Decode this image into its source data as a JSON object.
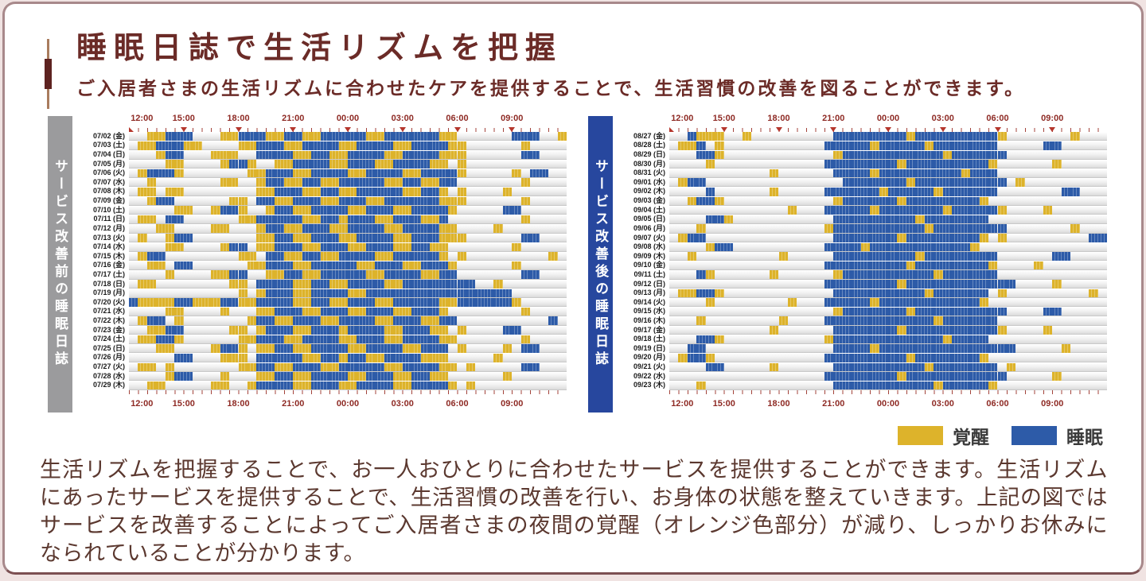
{
  "header": {
    "title": "睡眠日誌で生活リズムを把握",
    "subtitle": "ご入居者さまの生活リズムに合わせたケアを提供することで、生活習慣の改善を図ることができます。"
  },
  "legend": {
    "items": [
      {
        "key": "W",
        "label": "覚醒",
        "color": "#DDB32B"
      },
      {
        "key": "S",
        "label": "睡眠",
        "color": "#2D5BA8"
      }
    ]
  },
  "caption_text": "生活リズムを把握することで、お一人おひとりに合わせたサービスを提供することができます。生活リズムにあったサービスを提供することで、生活習慣の改善を行い、お身体の状態を整えていきます。上記の図ではサービスを改善することによってご入居者さまの夜間の覚醒（オレンジ色部分）が減り、しっかりお休みになられていることが分かります。",
  "colors": {
    "accent_maroon": "#6B2B27",
    "axis_label": "#8E2A24",
    "axis_day_bg": "#F9F2D0",
    "axis_night_band": "#A89BCC",
    "before_label_bar": "#9B9B9D",
    "after_label_bar": "#27479E",
    "wake": "#DDB32B",
    "sleep": "#2D5BA8",
    "tick_mark": "#A3433B",
    "triangle": "#B5362C"
  },
  "chart_data": [
    {
      "type": "heatmap",
      "title": "サービス改善前の睡眠日誌",
      "time_ticks": [
        "12:00",
        "15:00",
        "18:00",
        "21:00",
        "00:00",
        "03:00",
        "06:00",
        "09:00"
      ],
      "time_span_hours": 24,
      "slot_minutes": 30,
      "night_band": {
        "start": "18:00",
        "end": "06:00"
      },
      "value_legend": {
        "W": "覚醒",
        "S": "睡眠",
        ".": "none"
      },
      "categories": [
        "07/02 (金)",
        "07/03 (土)",
        "07/04 (日)",
        "07/05 (月)",
        "07/06 (火)",
        "07/07 (水)",
        "07/08 (木)",
        "07/09 (金)",
        "07/10 (土)",
        "07/11 (日)",
        "07/12 (月)",
        "07/13 (火)",
        "07/14 (水)",
        "07/15 (木)",
        "07/16 (金)",
        "07/17 (土)",
        "07/18 (日)",
        "07/19 (月)",
        "07/20 (火)",
        "07/21 (水)",
        "07/22 (木)",
        "07/23 (金)",
        "07/24 (土)",
        "07/25 (日)",
        "07/26 (月)",
        "07/27 (火)",
        "07/28 (水)",
        "07/29 (木)"
      ],
      "rows": [
        "..WWSSS...WWSSSWWSSWWSSSSSWWSSSSSSWW......SSS..W",
        ".WWSSSWW....WWSSSWWSSSSWWSSSSWWSSSSWW......W....",
        "...WSS...WWW..SSSSWWSSWWSSSSWWSSSSWWW......SS.",
        "....WW....WSSW..WWSSSSWWSSSWWSSSSWW.W...........",
        ".WSSSW.......WWSSSWWSSSSWWSSSSWWSSSSW.....W.SS..",
        "..W.......WW..WSSWWSSWWSSSSSWWSSWWSS.......W....",
        ".WW.WW........WWSSSWWSSWWSSSSSWWSSW.W....W......",
        "..WSS......WW.SSWWSSSWWSSSWWSSSSSSWWW......W....",
        ".....WW..WSSW..WSSWWSSSSWWSSSWWSSSSW.....SS.....",
        ".WW.SS......WWSSSSSWWSSWSSSWWSSSWWS........W....",
        "...WW....WW...WSSWWSSSWWSSSSWWSSSSWW....W.......",
        ".W..WSS.......WWSSWWSSSWWSSSSWWSSSWWW......SS...",
        "....WW....WSS.WWSSSWWSSSWWSSSWWSSWW.......W.....",
        ".WSS........WW.SSWWSSWWSSSSWWSSSSSW.W.........W.",
        "..WW.SS......WWSSSWWSSSSSWWSSSWWSSSW......W.....",
        "....W....WWSS..WWSSWWSSSSSWWSSSSWWSS.......SS...",
        ".WW........WW.SSSSWWSSWWSSSSWWSSSSSSSS..W.......",
        "............W.WSSSWWSSSSWWSSSSSSSSSSSSSSSS.....",
        "SWWWWSSWWWSSWWSSSSWWSSWWSSSWWSSSSSWWSSSSSSW.....",
        "....WW....W...WWSSSWWSSSWWSSSWWSSSW........W....",
        ".WSS.W.......WSSWWSSSWWSSSSWWSSSWWSS..........S.",
        "..WWSS.....WW.WSSSWWSSSWSSSSWWSSSWW.W....SS.....",
        ".WWSSW......WWSSSWWSSSSWWSSSWWSSSSWW.......W....",
        "...WW....WSSW.WWSSWWSSSSWWSSSSWWSSS.W....W.SS...",
        ".....SS...WWW.SSSSSWWSSWSSWWSSSSWWW.....W.......",
        ".WW.W.......WWSSWWSSSWWSSSSSWWSSSSWW.W.....SS...",
        "....WSS...W...WWSSWWSSSSWWSSSWWSSWW......W......",
        "..WW.....WW..WSSSSWWSSSWWSSSSWWSSSSW.W.........."
      ]
    },
    {
      "type": "heatmap",
      "title": "サービス改善後の睡眠日誌",
      "time_ticks": [
        "12:00",
        "15:00",
        "18:00",
        "21:00",
        "00:00",
        "03:00",
        "06:00",
        "09:00"
      ],
      "time_span_hours": 24,
      "slot_minutes": 30,
      "night_band": {
        "start": "18:00",
        "end": "06:00"
      },
      "value_legend": {
        "W": "覚醒",
        "S": "睡眠",
        ".": "none"
      },
      "categories": [
        "08/27 (金)",
        "08/28 (土)",
        "08/29 (日)",
        "08/30 (月)",
        "08/31 (火)",
        "09/01 (水)",
        "09/02 (木)",
        "09/03 (金)",
        "09/04 (土)",
        "09/05 (日)",
        "09/06 (月)",
        "09/07 (火)",
        "09/08 (水)",
        "09/09 (木)",
        "09/10 (金)",
        "09/11 (土)",
        "09/12 (日)",
        "09/13 (月)",
        "09/14 (火)",
        "09/15 (水)",
        "09/16 (木)",
        "09/17 (金)",
        "09/18 (土)",
        "09/19 (日)",
        "09/20 (月)",
        "09/21 (火)",
        "09/22 (水)",
        "09/23 (木)"
      ],
      "rows": [
        "..SWWW..W.........SSSSSSSSWSSSSSSSSSW.......W...",
        ".WWS.W...........SSSSSWSSSSSWSSSSSSS.....SS.....",
        "...SSW............WSSSSSSSSSSSWSSSSSS...........",
        "....W............SSSSSSSSWSSSSSSSSSW......W.....",
        "...........W......SSSSWSSSSSSSSSWSSS............",
        ".WSS...............SSSSSSSWSSSSSSSSSS.W.........",
        "....S......W.....SSSSSSWSSSSSWSSSSSS.......SS...",
        "..WSSW............WSSSSSSWSSSSSSSSW.............",
        ".............W...SSSSSWSSSSSSSWSSSSSW....W......",
        "....SSW...........SSSSSSSSSWSSSSSSS.............",
        "...W.............WSSSSSSSSSSWSSSSSSSS.......W...",
        ".WSS..............SSSSSSSWSSSSSSSSW.W.........SS",
        "....WSS..........SSSSWSSSSSSSSSSSW..............",
        "..W.........W.....SSSSSSSSSWSSSSSSSS......SS....",
        ".................SSSSSSSSSWSSSSSSSSW....W.......",
        "...SW......W......WSSSSSSSSSSWSSSSSS............",
        ".................SSSSSSSSWSSSSSSSSSSSS....W.....",
        ".WWSSW............SSSSSSSSSSWSSSSSS.W.........W.",
        "....W........W...SSSSSWSSSSSSSSSSSW.............",
        "..................WSSSSSSSWSSSSSSSSSS....SS.....",
        "...W........W....SSSSSSSSSSSSWSSSSSS............",
        "...........W......SSSSSSSWSSSSSSSSSSW....W......",
        "...SSW...........WSSSSSSSSSSSSWSSSS.............",
        "..SS..............SSSSWSSSSSSSSSSSSSSS.....W....",
        ".WSSW............SSSSSSSSSWSSSSSSSW.............",
        "....SS.....W......SSSSSSSSSSWSSSSSSS.W..........",
        ".................SSSSSSSSWSSSSSSSSSSS.....W.....",
        "...W..............SSSSSSSSSSSWSSSSSW............"
      ]
    }
  ]
}
